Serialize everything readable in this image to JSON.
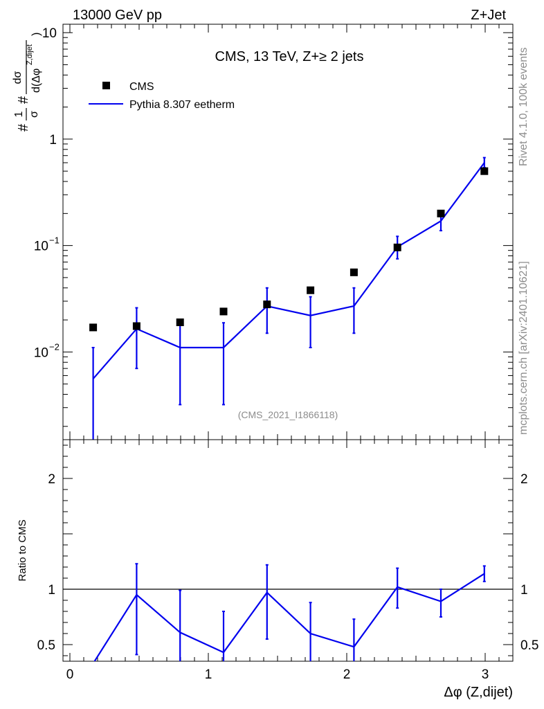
{
  "header": {
    "left": "13000 GeV pp",
    "right": "Z+Jet"
  },
  "side_labels": {
    "rivet": "Rivet 4.1.0,  100k events",
    "mcplots": "mcplots.cern.ch [arXiv:2401.10621]"
  },
  "colors": {
    "mc": "#0000ee",
    "data": "#000000",
    "watermark": "#8c8c8c"
  },
  "chart_data": [
    {
      "type": "line",
      "title": "CMS, 13 TeV, Z+≥ 2 jets",
      "analysis_label": "(CMS_2021_I1866118)",
      "ylabel": "#frac{1}{σ} #frac{dσ}{d(Δφ^{Z,dijet})}",
      "ylabel_parts": {
        "prefix": "#",
        "one": "1",
        "sigma": "σ",
        "hash": "#",
        "dsigma": "dσ",
        "denom": "d(Δφ",
        "sup": "Z,dijet",
        "close": ")"
      },
      "yscale": "log",
      "ylim": [
        0.0015,
        12
      ],
      "xlim": [
        -0.05,
        3.2
      ],
      "y_ticks": [
        {
          "value": 0.01,
          "label_base": "10",
          "label_exp": "−2"
        },
        {
          "value": 0.1,
          "label_base": "10",
          "label_exp": "−1"
        },
        {
          "value": 1,
          "label_base": "1",
          "label_exp": ""
        },
        {
          "value": 10,
          "label_base": "10",
          "label_exp": ""
        }
      ],
      "legend": [
        {
          "label": "CMS",
          "kind": "marker"
        },
        {
          "label": "Pythia 8.307 eetherm",
          "kind": "line"
        }
      ],
      "series": [
        {
          "name": "CMS",
          "x": [
            0.168,
            0.482,
            0.796,
            1.11,
            1.424,
            1.738,
            2.052,
            2.366,
            2.68,
            2.994
          ],
          "values": [
            0.017,
            0.0175,
            0.019,
            0.024,
            0.028,
            0.038,
            0.056,
            0.096,
            0.2,
            0.5
          ]
        },
        {
          "name": "Pythia 8.307 eetherm",
          "x": [
            0.168,
            0.482,
            0.796,
            1.11,
            1.424,
            1.738,
            2.052,
            2.366,
            2.68,
            2.994
          ],
          "values": [
            0.0056,
            0.0165,
            0.011,
            0.011,
            0.027,
            0.022,
            0.027,
            0.097,
            0.17,
            0.6
          ],
          "err_low": [
            0.0056,
            0.0095,
            0.0078,
            0.0078,
            0.012,
            0.011,
            0.012,
            0.022,
            0.032,
            0.06
          ],
          "err_high": [
            0.0054,
            0.0095,
            0.0078,
            0.0078,
            0.013,
            0.011,
            0.013,
            0.025,
            0.035,
            0.07
          ]
        }
      ]
    },
    {
      "type": "line",
      "title": "",
      "ylabel": "Ratio to CMS",
      "xlabel": "Δφ (Z,dijet)",
      "ylim": [
        0.35,
        2.35
      ],
      "xlim": [
        -0.05,
        3.2
      ],
      "y_ticks": [
        0.5,
        1,
        2
      ],
      "y_tick_labels": [
        "0.5",
        "1",
        "2"
      ],
      "x_ticks": [
        0,
        1,
        2,
        3
      ],
      "x_tick_labels": [
        "0",
        "1",
        "2",
        "3"
      ],
      "reference_line": 1,
      "series": [
        {
          "name": "Pythia 8.307 eetherm / CMS",
          "x": [
            0.168,
            0.482,
            0.796,
            1.11,
            1.424,
            1.738,
            2.052,
            2.366,
            2.68,
            2.994
          ],
          "values": [
            0.33,
            0.95,
            0.61,
            0.43,
            0.97,
            0.6,
            0.48,
            1.02,
            0.89,
            1.14
          ],
          "err_low": [
            0.33,
            0.54,
            0.42,
            0.43,
            0.42,
            0.36,
            0.36,
            0.19,
            0.14,
            0.07
          ],
          "err_high": [
            0.34,
            0.28,
            0.38,
            0.37,
            0.25,
            0.28,
            0.25,
            0.17,
            0.11,
            0.07
          ]
        }
      ]
    }
  ]
}
